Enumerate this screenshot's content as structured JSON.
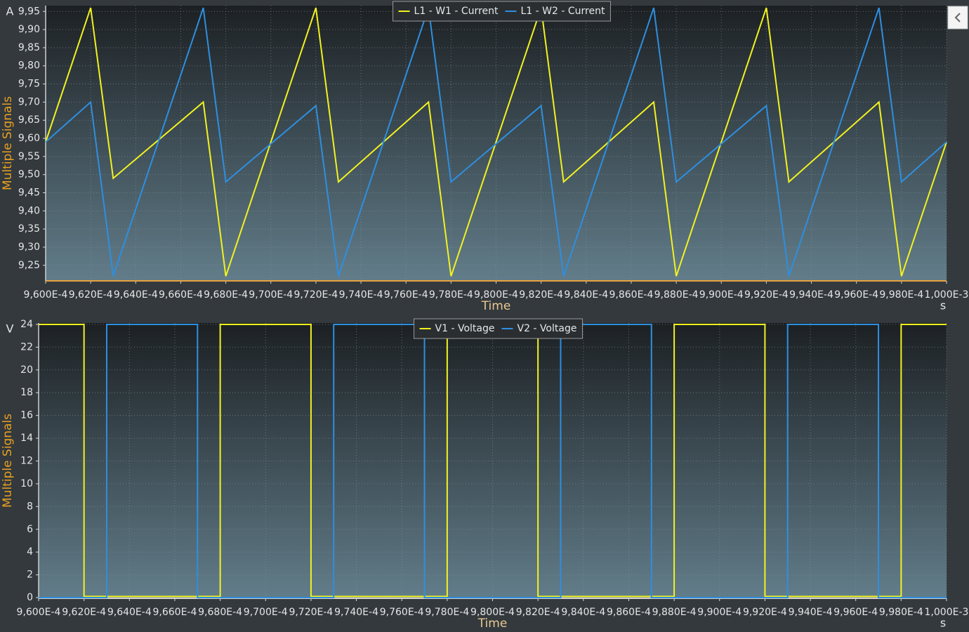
{
  "chart_data": [
    {
      "type": "line",
      "ylabel": "Multiple Signals",
      "y_unit": "A",
      "xlabel": "Time",
      "x_unit": "s",
      "grid": true,
      "legend": "top",
      "xlim": [
        0.00096,
        0.001
      ],
      "ylim": [
        9.207,
        9.966
      ],
      "xticks": [
        {
          "value": 0.00096,
          "label": "9,600E-4"
        },
        {
          "value": 0.000962,
          "label": "9,620E-4"
        },
        {
          "value": 0.000964,
          "label": "9,640E-4"
        },
        {
          "value": 0.000966,
          "label": "9,660E-4"
        },
        {
          "value": 0.000968,
          "label": "9,680E-4"
        },
        {
          "value": 0.00097,
          "label": "9,700E-4"
        },
        {
          "value": 0.000972,
          "label": "9,720E-4"
        },
        {
          "value": 0.000974,
          "label": "9,740E-4"
        },
        {
          "value": 0.000976,
          "label": "9,760E-4"
        },
        {
          "value": 0.000978,
          "label": "9,780E-4"
        },
        {
          "value": 0.00098,
          "label": "9,800E-4"
        },
        {
          "value": 0.000982,
          "label": "9,820E-4"
        },
        {
          "value": 0.000984,
          "label": "9,840E-4"
        },
        {
          "value": 0.000986,
          "label": "9,860E-4"
        },
        {
          "value": 0.000988,
          "label": "9,880E-4"
        },
        {
          "value": 0.00099,
          "label": "9,900E-4"
        },
        {
          "value": 0.000992,
          "label": "9,920E-4"
        },
        {
          "value": 0.000994,
          "label": "9,940E-4"
        },
        {
          "value": 0.000996,
          "label": "9,960E-4"
        },
        {
          "value": 0.000998,
          "label": "9,980E-4"
        },
        {
          "value": 0.001,
          "label": "1,000E-3"
        }
      ],
      "yticks": [
        {
          "value": 9.25,
          "label": "9,25"
        },
        {
          "value": 9.3,
          "label": "9,30"
        },
        {
          "value": 9.35,
          "label": "9,35"
        },
        {
          "value": 9.4,
          "label": "9,40"
        },
        {
          "value": 9.45,
          "label": "9,45"
        },
        {
          "value": 9.5,
          "label": "9,50"
        },
        {
          "value": 9.55,
          "label": "9,55"
        },
        {
          "value": 9.6,
          "label": "9,60"
        },
        {
          "value": 9.65,
          "label": "9,65"
        },
        {
          "value": 9.7,
          "label": "9,70"
        },
        {
          "value": 9.75,
          "label": "9,75"
        },
        {
          "value": 9.8,
          "label": "9,80"
        },
        {
          "value": 9.85,
          "label": "9,85"
        },
        {
          "value": 9.9,
          "label": "9,90"
        },
        {
          "value": 9.95,
          "label": "9,95"
        }
      ],
      "series": [
        {
          "name": "L1 - W1 - Current",
          "color": "#f2f21e",
          "x": [
            0.00096,
            0.000962,
            0.000963,
            0.000967,
            0.000968,
            0.000972,
            0.000973,
            0.000977,
            0.000978,
            0.000982,
            0.000983,
            0.000987,
            0.000988,
            0.000992,
            0.000993,
            0.000997,
            0.000998,
            0.001
          ],
          "values": [
            9.59,
            9.96,
            9.49,
            9.7,
            9.22,
            9.96,
            9.48,
            9.7,
            9.22,
            9.96,
            9.48,
            9.7,
            9.22,
            9.96,
            9.48,
            9.7,
            9.22,
            9.59
          ]
        },
        {
          "name": "L1 - W2 - Current",
          "color": "#2e8fe0",
          "x": [
            0.00096,
            0.000962,
            0.000963,
            0.000967,
            0.000968,
            0.000972,
            0.000973,
            0.000977,
            0.000978,
            0.000982,
            0.000983,
            0.000987,
            0.000988,
            0.000992,
            0.000993,
            0.000997,
            0.000998,
            0.001
          ],
          "values": [
            9.59,
            9.7,
            9.22,
            9.96,
            9.48,
            9.69,
            9.22,
            9.96,
            9.48,
            9.69,
            9.22,
            9.96,
            9.48,
            9.69,
            9.22,
            9.96,
            9.48,
            9.59
          ]
        }
      ]
    },
    {
      "type": "line",
      "ylabel": "Multiple Signals",
      "y_unit": "V",
      "xlabel": "Time",
      "x_unit": "s",
      "grid": true,
      "legend": "top",
      "xlim": [
        0.00096,
        0.001
      ],
      "ylim": [
        -0.06,
        24.12
      ],
      "xticks": [
        {
          "value": 0.00096,
          "label": "9,600E-4"
        },
        {
          "value": 0.000962,
          "label": "9,620E-4"
        },
        {
          "value": 0.000964,
          "label": "9,640E-4"
        },
        {
          "value": 0.000966,
          "label": "9,660E-4"
        },
        {
          "value": 0.000968,
          "label": "9,680E-4"
        },
        {
          "value": 0.00097,
          "label": "9,700E-4"
        },
        {
          "value": 0.000972,
          "label": "9,720E-4"
        },
        {
          "value": 0.000974,
          "label": "9,740E-4"
        },
        {
          "value": 0.000976,
          "label": "9,760E-4"
        },
        {
          "value": 0.000978,
          "label": "9,780E-4"
        },
        {
          "value": 0.00098,
          "label": "9,800E-4"
        },
        {
          "value": 0.000982,
          "label": "9,820E-4"
        },
        {
          "value": 0.000984,
          "label": "9,840E-4"
        },
        {
          "value": 0.000986,
          "label": "9,860E-4"
        },
        {
          "value": 0.000988,
          "label": "9,880E-4"
        },
        {
          "value": 0.00099,
          "label": "9,900E-4"
        },
        {
          "value": 0.000992,
          "label": "9,920E-4"
        },
        {
          "value": 0.000994,
          "label": "9,940E-4"
        },
        {
          "value": 0.000996,
          "label": "9,960E-4"
        },
        {
          "value": 0.000998,
          "label": "9,980E-4"
        },
        {
          "value": 0.001,
          "label": "1,000E-3"
        }
      ],
      "yticks": [
        0,
        2,
        4,
        6,
        8,
        10,
        12,
        14,
        16,
        18,
        20,
        22,
        24
      ],
      "series": [
        {
          "name": "V1 - Voltage",
          "color": "#f2f21e",
          "x": [
            0.00096,
            0.000962,
            0.000962,
            0.000968,
            0.000968,
            0.000972,
            0.000972,
            0.000978,
            0.000978,
            0.000982,
            0.000982,
            0.000988,
            0.000988,
            0.000992,
            0.000992,
            0.000998,
            0.000998,
            0.001
          ],
          "values": [
            24,
            24,
            0.1,
            0.1,
            24,
            24,
            0.1,
            0.1,
            24,
            24,
            0.1,
            0.1,
            24,
            24,
            0.1,
            0.1,
            24,
            24
          ]
        },
        {
          "name": "V2 - Voltage",
          "color": "#2e8fe0",
          "x": [
            0.00096,
            0.000963,
            0.000963,
            0.000967,
            0.000967,
            0.000973,
            0.000973,
            0.000977,
            0.000977,
            0.000983,
            0.000983,
            0.000987,
            0.000987,
            0.000993,
            0.000993,
            0.000997,
            0.000997,
            0.001
          ],
          "values": [
            0,
            0,
            24,
            24,
            0,
            0,
            24,
            24,
            0,
            0,
            24,
            24,
            0,
            0,
            24,
            24,
            0,
            0
          ]
        }
      ]
    }
  ]
}
